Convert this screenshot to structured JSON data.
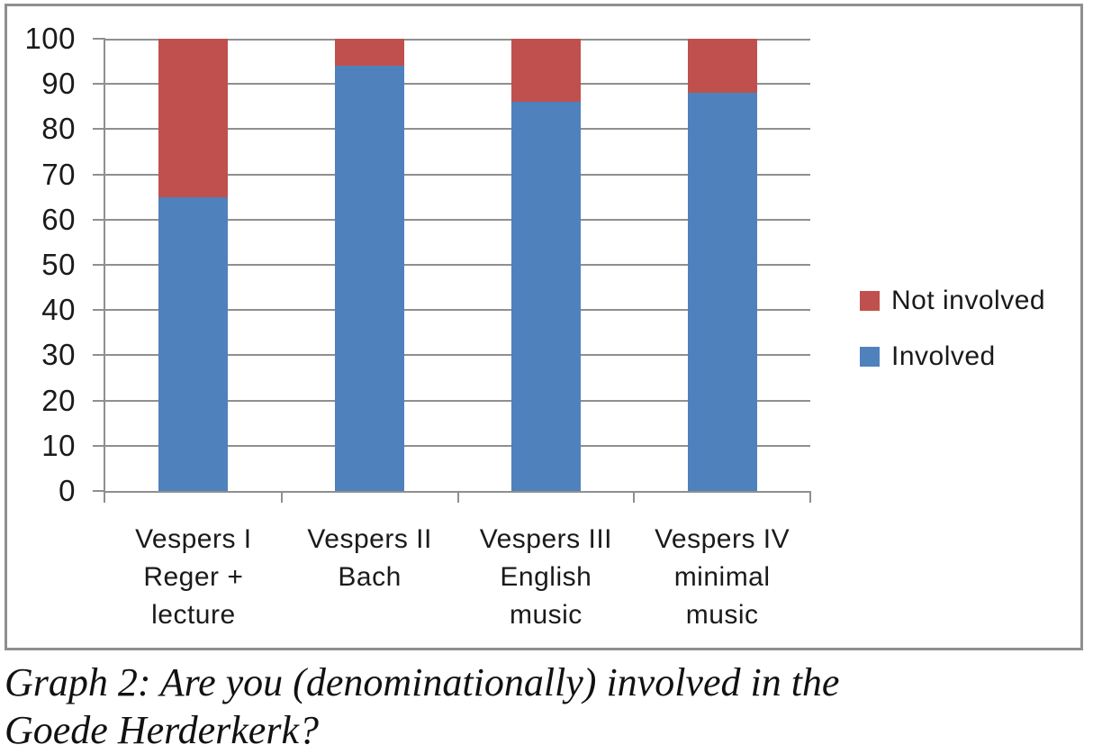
{
  "chart_data": {
    "type": "bar",
    "stacked": true,
    "title": "",
    "xlabel": "",
    "ylabel": "",
    "categories": [
      [
        "Vespers I",
        "Reger +",
        "lecture"
      ],
      [
        "Vespers II",
        "Bach"
      ],
      [
        "Vespers III",
        "English",
        "music"
      ],
      [
        "Vespers IV",
        "minimal",
        "music"
      ]
    ],
    "series": [
      {
        "name": "Involved",
        "color": "#4F81BD",
        "values": [
          65,
          94,
          86,
          88
        ]
      },
      {
        "name": "Not involved",
        "color": "#C0504D",
        "values": [
          35,
          6,
          14,
          12
        ]
      }
    ],
    "ylim": [
      0,
      100
    ],
    "yticks": [
      0,
      10,
      20,
      30,
      40,
      50,
      60,
      70,
      80,
      90,
      100
    ],
    "grid": true,
    "legend": {
      "position": "right",
      "items": [
        {
          "label": "Not involved",
          "color": "#C0504D"
        },
        {
          "label": "Involved",
          "color": "#4F81BD"
        }
      ]
    }
  },
  "caption": {
    "lines": [
      "Graph 2: Are you (denominationally) involved in the",
      "Goede Herderkerk?"
    ]
  },
  "colors": {
    "grid_axis": "#8f8f8f",
    "frame_border": "#8f8f8f",
    "text": "#1a1a1a"
  }
}
